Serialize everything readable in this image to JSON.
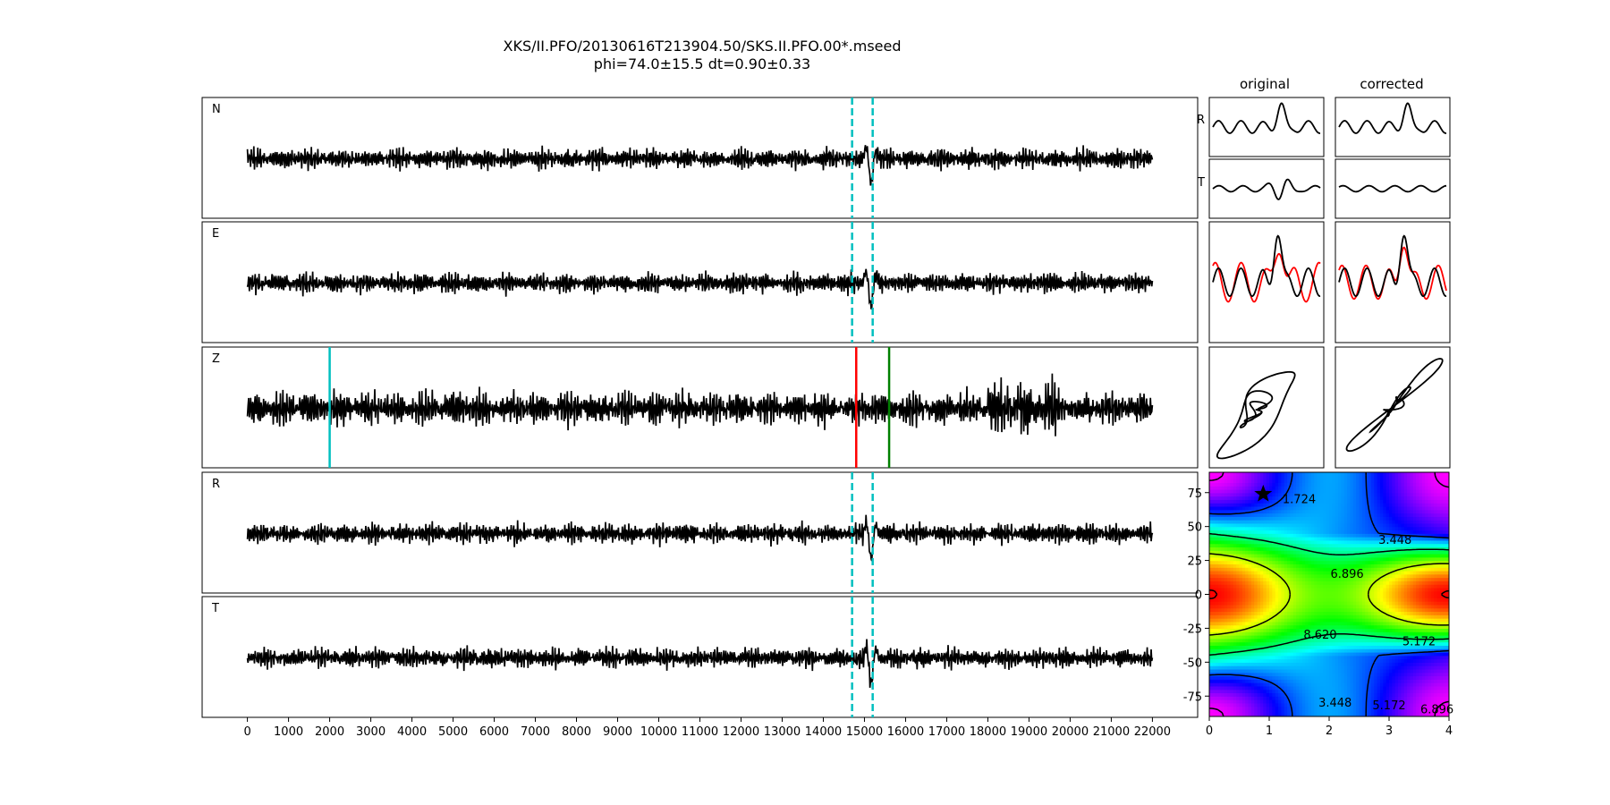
{
  "title_line1": "XKS/II.PFO/20130616T213904.50/SKS.II.PFO.00*.mseed",
  "title_line2": "phi=74.0±15.5 dt=0.90±0.33",
  "col_titles": [
    "original",
    "corrected"
  ],
  "small_labels": [
    "R",
    "T"
  ],
  "chart_data": [
    {
      "type": "line",
      "name": "seismogram-traces",
      "panels": [
        "N",
        "E",
        "Z",
        "R",
        "T"
      ],
      "xlim": [
        -1100,
        23100
      ],
      "xticks": [
        0,
        1000,
        2000,
        3000,
        4000,
        5000,
        6000,
        7000,
        8000,
        9000,
        10000,
        11000,
        12000,
        13000,
        14000,
        15000,
        16000,
        17000,
        18000,
        19000,
        20000,
        21000,
        22000
      ],
      "trace_range": [
        0,
        22000
      ],
      "analysis_window": [
        14700,
        15200
      ],
      "window_color": "#00bfbf",
      "z_markers": [
        {
          "x": 2000,
          "color": "#00bfbf"
        },
        {
          "x": 14800,
          "color": "#ff0000"
        },
        {
          "x": 15600,
          "color": "#007f00"
        }
      ]
    },
    {
      "type": "heatmap",
      "name": "error-surface",
      "xlim": [
        0,
        4
      ],
      "ylim": [
        -90,
        90
      ],
      "xticks": [
        0,
        1,
        2,
        3,
        4
      ],
      "yticks": [
        -75,
        -50,
        -25,
        0,
        25,
        50,
        75
      ],
      "contour_levels": [
        1.724,
        3.448,
        5.172,
        6.896,
        8.62
      ],
      "contour_labels": [
        "1.724",
        "3.448",
        "5.172",
        "6.896",
        "8.620"
      ],
      "best_fit": {
        "dt": 0.9,
        "phi": 74
      },
      "colormap": "gist_rainbow"
    }
  ]
}
